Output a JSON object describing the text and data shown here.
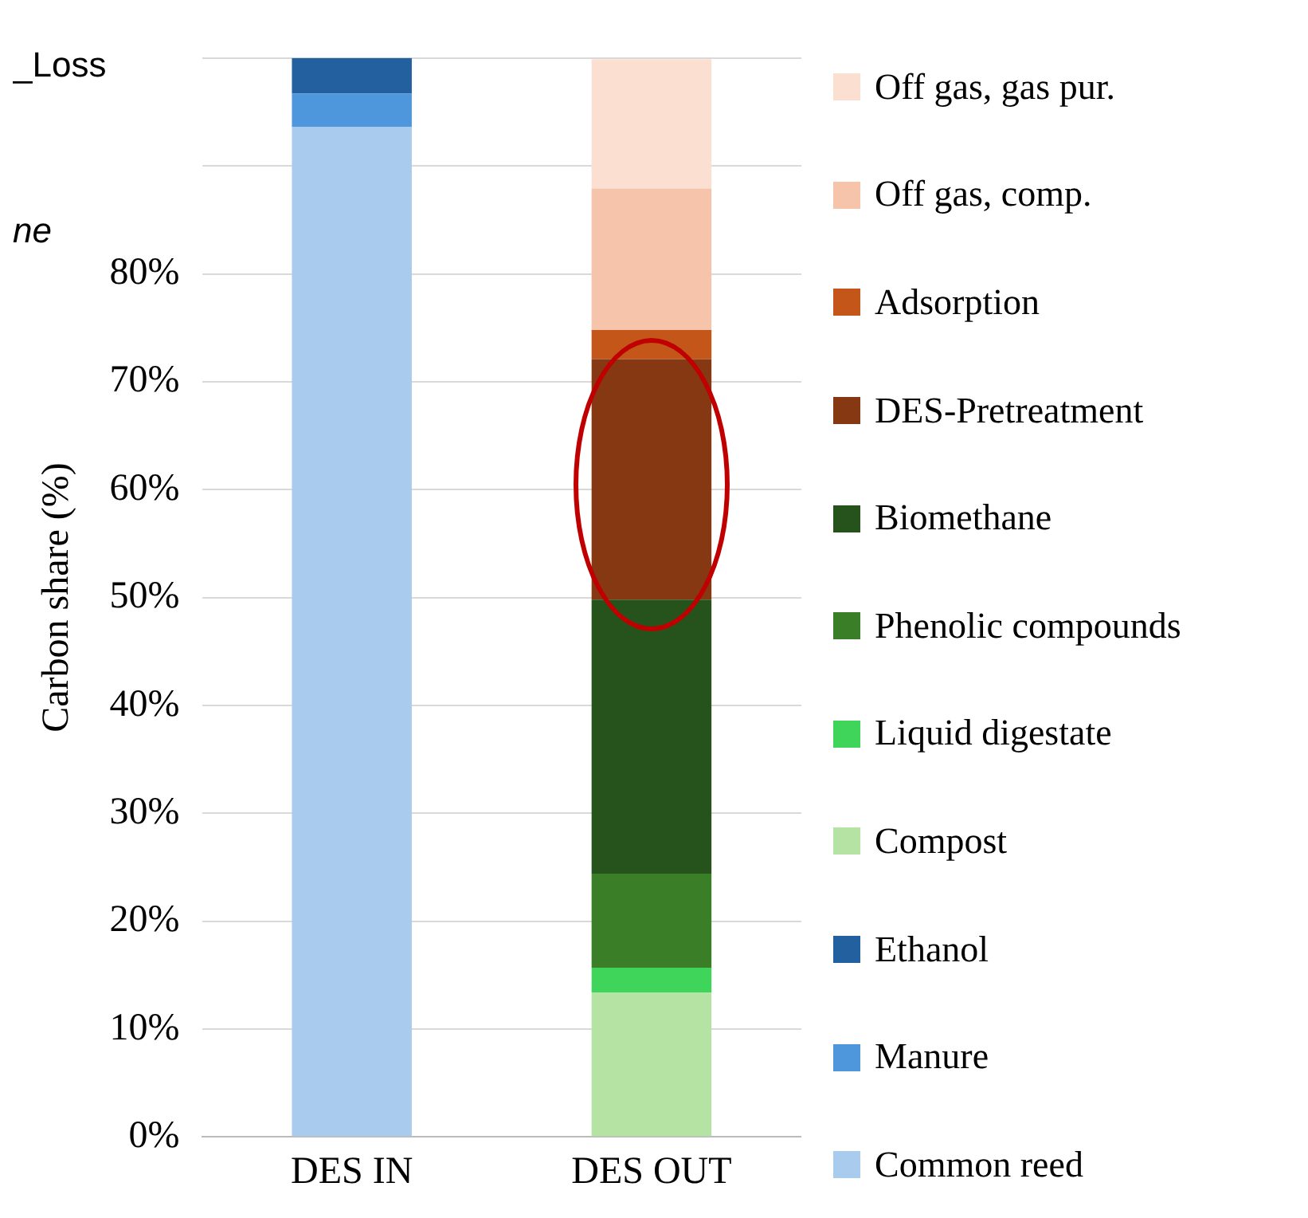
{
  "chart_data": {
    "type": "bar",
    "stacked": true,
    "ylabel": "Carbon share (%)",
    "categories": [
      "DES IN",
      "DES OUT"
    ],
    "series": [
      {
        "name": "Common reed",
        "color": "#a9cbed",
        "values": [
          93.6,
          0
        ]
      },
      {
        "name": "Manure",
        "color": "#4f97dc",
        "values": [
          3.1,
          0
        ]
      },
      {
        "name": "Ethanol",
        "color": "#22609f",
        "values": [
          3.3,
          0
        ]
      },
      {
        "name": "Compost",
        "color": "#b5e3a3",
        "values": [
          0,
          13.4
        ]
      },
      {
        "name": "Liquid digestate",
        "color": "#3fd55a",
        "values": [
          0,
          2.3
        ]
      },
      {
        "name": "Phenolic compounds",
        "color": "#3a7f28",
        "values": [
          0,
          8.7
        ]
      },
      {
        "name": "Biomethane",
        "color": "#26531b",
        "values": [
          0,
          25.4
        ]
      },
      {
        "name": "DES-Pretreatment",
        "color": "#863813",
        "values": [
          0,
          22.3
        ]
      },
      {
        "name": "Adsorption",
        "color": "#c55619",
        "values": [
          0,
          2.7
        ]
      },
      {
        "name": "Off gas, comp.",
        "color": "#f5c4aa",
        "values": [
          0,
          13.1
        ]
      },
      {
        "name": "Off gas, gas pur.",
        "color": "#fbe0d2",
        "values": [
          0,
          12.0
        ]
      }
    ],
    "ylim": [
      0,
      100
    ],
    "yticks": [
      {
        "value": 0,
        "label": "0%"
      },
      {
        "value": 10,
        "label": "10%"
      },
      {
        "value": 20,
        "label": "20%"
      },
      {
        "value": 30,
        "label": "30%"
      },
      {
        "value": 40,
        "label": "40%"
      },
      {
        "value": 50,
        "label": "50%"
      },
      {
        "value": 60,
        "label": "60%"
      },
      {
        "value": 70,
        "label": "70%"
      },
      {
        "value": 80,
        "label": "80%"
      },
      {
        "value": 90,
        "label": null
      },
      {
        "value": 100,
        "label": null
      }
    ],
    "grid": "y",
    "legend": "right",
    "annotations": [
      "_Loss",
      "ne"
    ]
  }
}
